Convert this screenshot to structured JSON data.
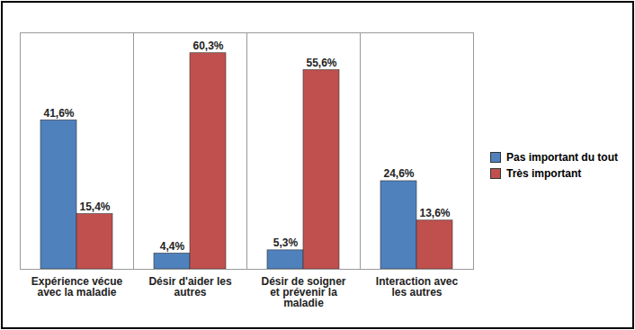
{
  "chart_data": {
    "type": "bar",
    "categories": [
      "Expérience vécue avec la maladie",
      "Désir d'aider les autres",
      "Désir de soigner et prévenir la maladie",
      "Interaction avec les autres"
    ],
    "series": [
      {
        "name": "Pas important du tout",
        "color": "#4f81bd",
        "values": [
          41.6,
          4.4,
          5.3,
          24.6
        ],
        "value_labels": [
          "41,6%",
          "4,4%",
          "5,3%",
          "24,6%"
        ]
      },
      {
        "name": "Très important",
        "color": "#c0504d",
        "values": [
          15.4,
          60.3,
          55.6,
          13.6
        ],
        "value_labels": [
          "15,4%",
          "60,3%",
          "55,6%",
          "13,6%"
        ]
      }
    ],
    "ylim": [
      0,
      66
    ],
    "data_labels": true,
    "tick_labels": "x",
    "legend": "right",
    "grid": false
  }
}
